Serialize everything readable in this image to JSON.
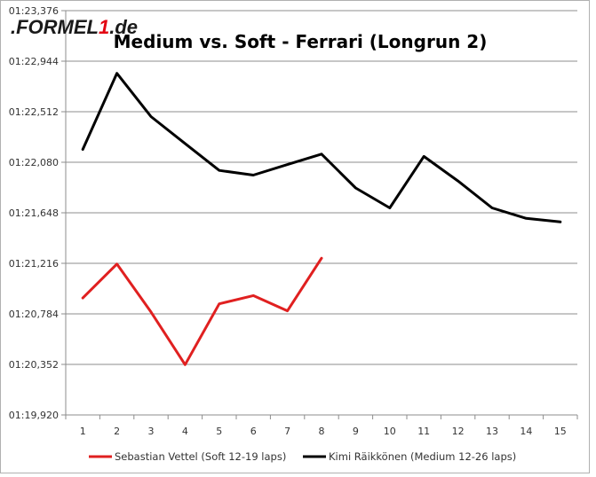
{
  "logo": {
    "prefix": ".FORMEL",
    "digit": "1",
    "suffix": ".de"
  },
  "chart_data": {
    "type": "line",
    "title": "Medium vs. Soft - Ferrari (Longrun 2)",
    "xlabel": "",
    "ylabel": "",
    "x": [
      1,
      2,
      3,
      4,
      5,
      6,
      7,
      8,
      9,
      10,
      11,
      12,
      13,
      14,
      15
    ],
    "y_tick_labels": [
      "01:19,920",
      "01:20,352",
      "01:20,784",
      "01:21,216",
      "01:21,648",
      "01:22,080",
      "01:22,512",
      "01:22,944",
      "01:23,376"
    ],
    "ylim_seconds": [
      79.92,
      83.376
    ],
    "grid": true,
    "legend_position": "bottom",
    "series": [
      {
        "name": "Sebastian Vettel (Soft 12-19 laps)",
        "color": "#e02020",
        "x": [
          1,
          2,
          3,
          4,
          5,
          6,
          7,
          8
        ],
        "values_seconds": [
          80.92,
          81.21,
          80.8,
          80.35,
          80.87,
          80.94,
          80.81,
          81.26
        ]
      },
      {
        "name": "Kimi Räikkönen (Medium 12-26 laps)",
        "color": "#000000",
        "x": [
          1,
          2,
          3,
          4,
          5,
          6,
          7,
          8,
          9,
          10,
          11,
          12,
          13,
          14,
          15
        ],
        "values_seconds": [
          82.19,
          82.84,
          82.47,
          82.24,
          82.01,
          81.97,
          82.06,
          82.15,
          81.86,
          81.69,
          82.13,
          81.92,
          81.69,
          81.6,
          81.57
        ]
      }
    ]
  }
}
